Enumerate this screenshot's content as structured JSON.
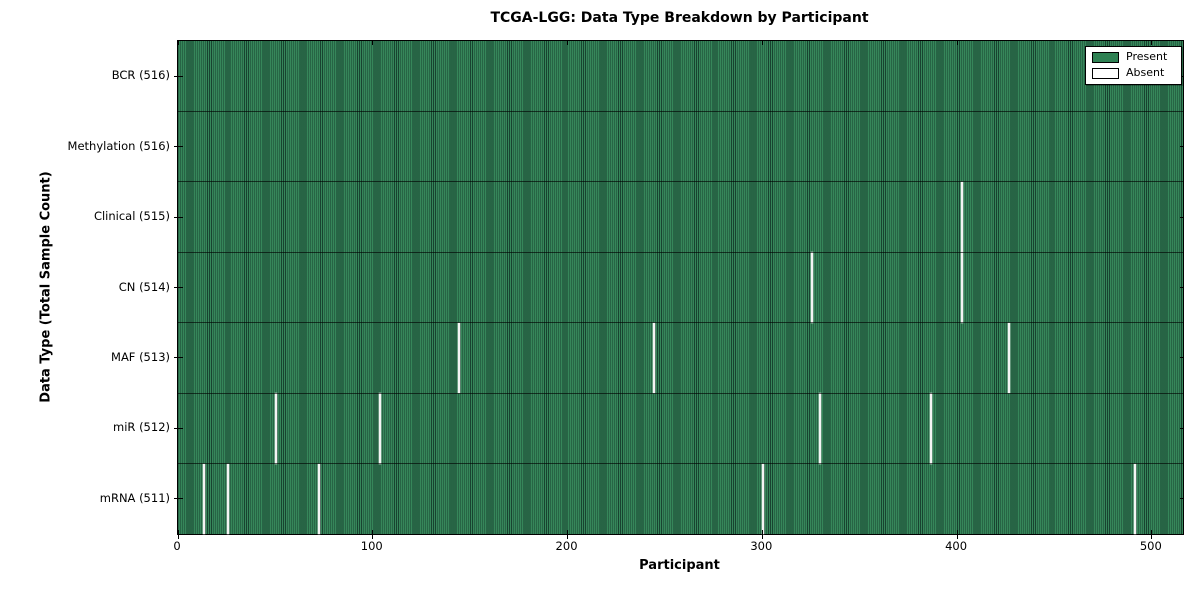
{
  "title": "TCGA-LGG: Data Type Breakdown by Participant",
  "xlabel": "Participant",
  "ylabel": "Data Type (Total Sample Count)",
  "legend": {
    "present_label": "Present",
    "absent_label": "Absent",
    "present_color": "#2e8153",
    "absent_color": "#ffffff"
  },
  "colors": {
    "present_fill": "#2e8153",
    "cell_edge": "#1a4a2f",
    "absent_fill": "#f4f4f4",
    "spine": "#000000",
    "background": "#ffffff"
  },
  "chart_data": {
    "type": "heatmap",
    "title": "TCGA-LGG: Data Type Breakdown by Participant",
    "xlabel": "Participant",
    "ylabel": "Data Type (Total Sample Count)",
    "x_range": [
      0,
      516
    ],
    "n_participants": 516,
    "x_ticks": [
      0,
      100,
      200,
      300,
      400,
      500
    ],
    "legend_position": "upper right",
    "grid": false,
    "rows": [
      {
        "label": "BCR (516)",
        "data_type": "BCR",
        "present_count": 516,
        "absent_participants": []
      },
      {
        "label": "Methylation (516)",
        "data_type": "Methylation",
        "present_count": 516,
        "absent_participants": []
      },
      {
        "label": "Clinical (515)",
        "data_type": "Clinical",
        "present_count": 515,
        "absent_participants": [
          402
        ]
      },
      {
        "label": "CN (514)",
        "data_type": "CN",
        "present_count": 514,
        "absent_participants": [
          325,
          402
        ]
      },
      {
        "label": "MAF (513)",
        "data_type": "MAF",
        "present_count": 513,
        "absent_participants": [
          144,
          244,
          426
        ]
      },
      {
        "label": "miR (512)",
        "data_type": "miR",
        "present_count": 512,
        "absent_participants": [
          50,
          103,
          329,
          386
        ]
      },
      {
        "label": "mRNA (511)",
        "data_type": "mRNA",
        "present_count": 511,
        "absent_participants": [
          13,
          25,
          72,
          300,
          491
        ]
      }
    ]
  }
}
